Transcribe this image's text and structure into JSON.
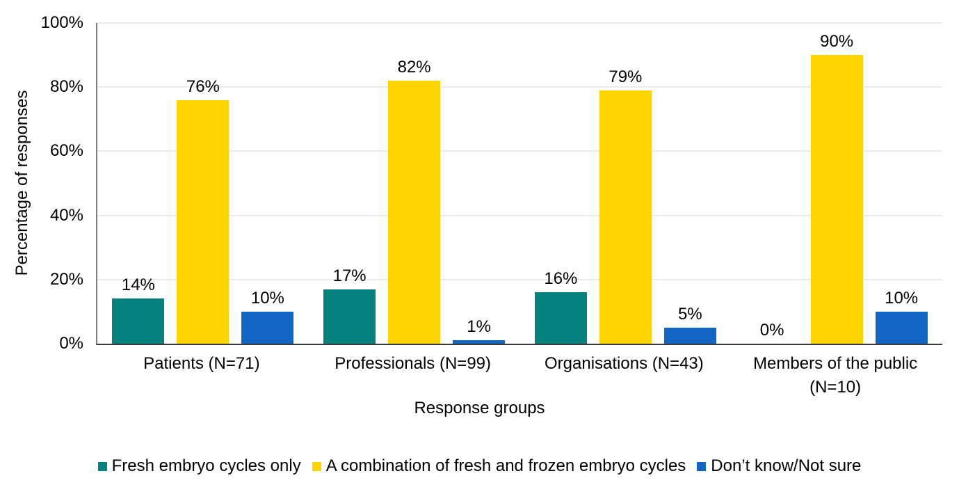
{
  "chart_data": {
    "type": "bar",
    "title": "",
    "xlabel": "Response groups",
    "ylabel": "Percentage of responses",
    "ylim": [
      0,
      100
    ],
    "ytick_step": 20,
    "yticks": [
      "0%",
      "20%",
      "40%",
      "60%",
      "80%",
      "100%"
    ],
    "grid": true,
    "legend_position": "bottom",
    "categories": [
      "Patients (N=71)",
      "Professionals (N=99)",
      "Organisations (N=43)",
      "Members of the public (N=10)"
    ],
    "series": [
      {
        "name": "Fresh embryo cycles only",
        "color": "#05827E",
        "values": [
          14,
          17,
          16,
          0
        ],
        "data_labels": [
          "14%",
          "17%",
          "16%",
          "0%"
        ]
      },
      {
        "name": "A combination of fresh and frozen embryo cycles",
        "color": "#FFD400",
        "values": [
          76,
          82,
          79,
          90
        ],
        "data_labels": [
          "76%",
          "82%",
          "79%",
          "90%"
        ]
      },
      {
        "name": "Don’t know/Not sure",
        "color": "#1166C3",
        "values": [
          10,
          1,
          5,
          10
        ],
        "data_labels": [
          "10%",
          "1%",
          "5%",
          "10%"
        ]
      }
    ]
  },
  "colors": {
    "axis_bottom": "#3a3a3a",
    "axis_left": "#7f7f7f",
    "gridline": "#ebebeb",
    "text": "#000000",
    "background": "#ffffff"
  }
}
